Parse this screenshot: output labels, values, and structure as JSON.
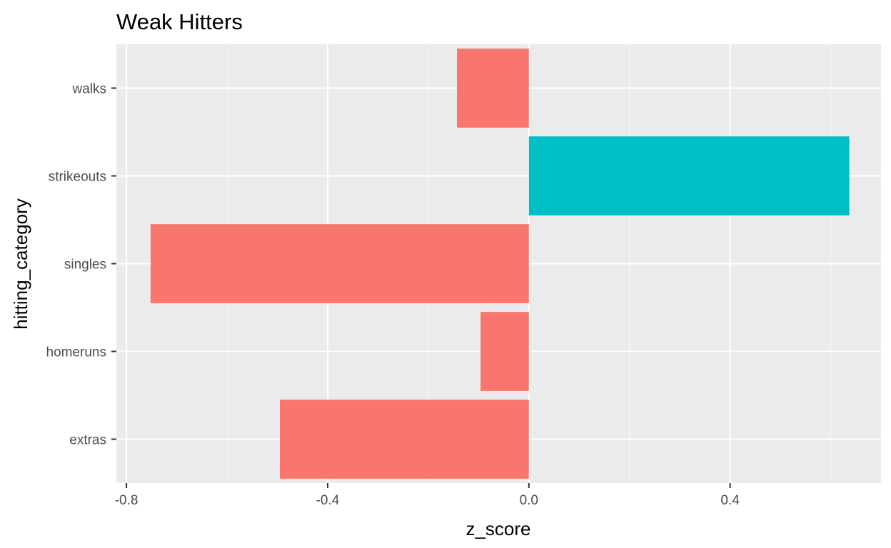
{
  "chart_data": {
    "type": "bar",
    "orientation": "horizontal",
    "title": "Weak Hitters",
    "xlabel": "z_score",
    "ylabel": "hitting_category",
    "categories": [
      "extras",
      "homeruns",
      "singles",
      "strikeouts",
      "walks"
    ],
    "values": [
      -0.495,
      -0.096,
      -0.752,
      0.637,
      -0.143
    ],
    "xlim": [
      -0.82,
      0.7
    ],
    "xticks": [
      -0.8,
      -0.4,
      0.0,
      0.4
    ],
    "xtick_labels": [
      "-0.8",
      "-0.4",
      "0.0",
      "0.4"
    ],
    "grid": true,
    "colors": {
      "negative": "#F8766D",
      "positive": "#00BFC4",
      "panel": "#EBEBEB",
      "grid_major": "#FFFFFF",
      "grid_minor": "#F5F5F5",
      "tick": "#333333",
      "tick_label": "#4D4D4D"
    }
  }
}
